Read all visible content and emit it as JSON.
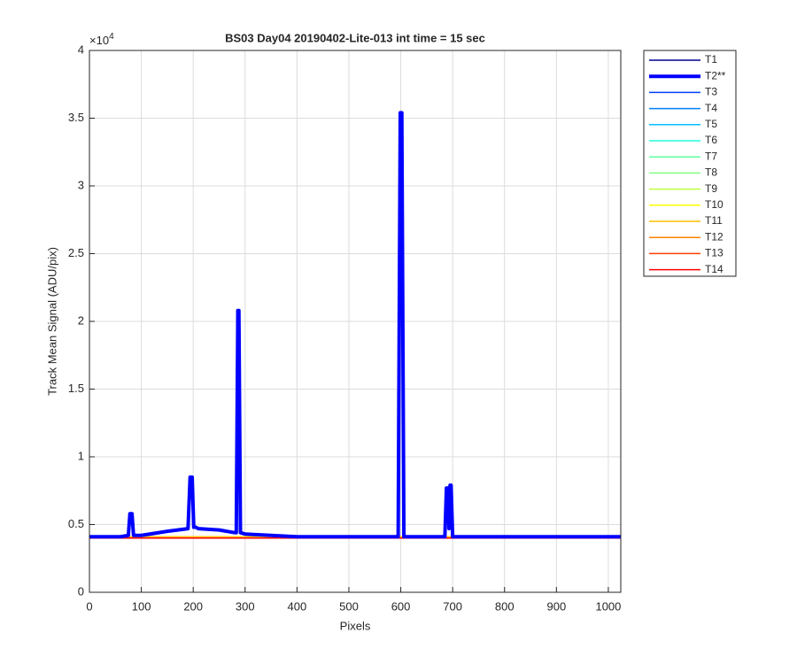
{
  "chart_data": {
    "type": "line",
    "title": "BS03 Day04 20190402-Lite-013 int time = 15 sec",
    "x_label": "Pixels",
    "y_label": "Track Mean Signal (ADU/pix)",
    "y_scale": {
      "base": "×10",
      "exponent": "4"
    },
    "xlim": [
      0,
      1024
    ],
    "ylim": [
      0,
      4
    ],
    "xticks": [
      0,
      100,
      200,
      300,
      400,
      500,
      600,
      700,
      800,
      900,
      1000
    ],
    "yticks": [
      0,
      0.5,
      1,
      1.5,
      2,
      2.5,
      3,
      3.5,
      4
    ],
    "grid": true,
    "legend": "outside-right",
    "series": [
      {
        "name": "T1",
        "color": "#000090",
        "x": [
          0,
          512,
          1024
        ],
        "values": [
          0.41,
          0.41,
          0.41
        ]
      },
      {
        "name": "T2**",
        "color": "#0000ff",
        "highlight": true,
        "x": [
          0,
          60,
          75,
          78,
          82,
          85,
          100,
          150,
          190,
          194,
          198,
          201,
          205,
          210,
          250,
          280,
          283,
          286,
          288,
          291,
          300,
          350,
          400,
          500,
          595,
          599,
          602,
          606,
          685,
          688,
          691,
          693,
          695,
          697,
          700,
          1024
        ],
        "values": [
          0.41,
          0.41,
          0.42,
          0.58,
          0.58,
          0.42,
          0.42,
          0.45,
          0.47,
          0.85,
          0.85,
          0.48,
          0.48,
          0.47,
          0.46,
          0.44,
          0.44,
          2.08,
          2.08,
          0.44,
          0.43,
          0.42,
          0.41,
          0.41,
          0.41,
          3.54,
          3.54,
          0.41,
          0.41,
          0.77,
          0.77,
          0.47,
          0.79,
          0.79,
          0.41,
          0.41
        ]
      },
      {
        "name": "T3",
        "color": "#0040ff",
        "x": [
          0,
          512,
          1024
        ],
        "values": [
          0.41,
          0.41,
          0.41
        ]
      },
      {
        "name": "T4",
        "color": "#0080ff",
        "x": [
          0,
          512,
          1024
        ],
        "values": [
          0.41,
          0.41,
          0.41
        ]
      },
      {
        "name": "T5",
        "color": "#00bfff",
        "x": [
          0,
          512,
          1024
        ],
        "values": [
          0.41,
          0.41,
          0.41
        ]
      },
      {
        "name": "T6",
        "color": "#20ffdf",
        "x": [
          0,
          512,
          1024
        ],
        "values": [
          0.41,
          0.41,
          0.41
        ]
      },
      {
        "name": "T7",
        "color": "#60ffa0",
        "x": [
          0,
          512,
          1024
        ],
        "values": [
          0.41,
          0.41,
          0.41
        ]
      },
      {
        "name": "T8",
        "color": "#80ff80",
        "x": [
          0,
          512,
          1024
        ],
        "values": [
          0.41,
          0.41,
          0.41
        ]
      },
      {
        "name": "T9",
        "color": "#bfff40",
        "x": [
          0,
          512,
          1024
        ],
        "values": [
          0.41,
          0.41,
          0.41
        ]
      },
      {
        "name": "T10",
        "color": "#ffff00",
        "x": [
          0,
          512,
          1024
        ],
        "values": [
          0.41,
          0.41,
          0.41
        ]
      },
      {
        "name": "T11",
        "color": "#ffbf00",
        "x": [
          0,
          512,
          1024
        ],
        "values": [
          0.41,
          0.41,
          0.41
        ]
      },
      {
        "name": "T12",
        "color": "#ff8000",
        "x": [
          0,
          512,
          1024
        ],
        "values": [
          0.4,
          0.4,
          0.4
        ]
      },
      {
        "name": "T13",
        "color": "#ff4000",
        "x": [
          0,
          512,
          1024
        ],
        "values": [
          0.4,
          0.4,
          0.4
        ]
      },
      {
        "name": "T14",
        "color": "#ff0000",
        "x": [
          0,
          512,
          1024
        ],
        "values": [
          0.4,
          0.4,
          0.4
        ]
      }
    ]
  }
}
